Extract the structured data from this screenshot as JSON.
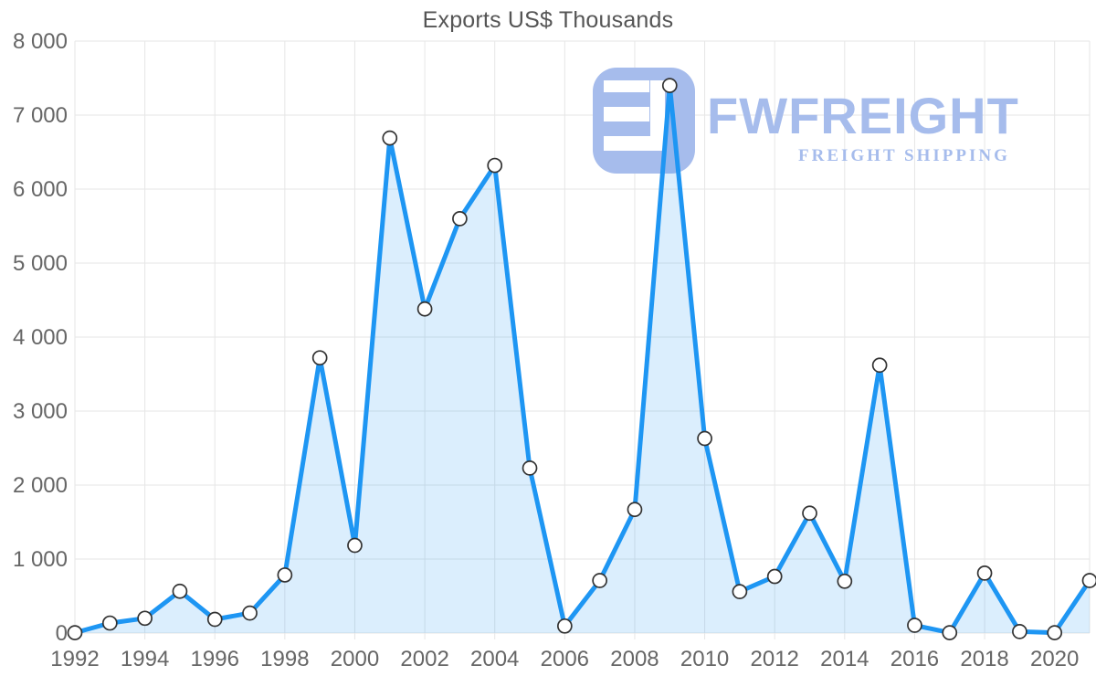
{
  "title": "Exports US$ Thousands",
  "watermark": {
    "brand": "FWFREIGHT",
    "tagline": "FREIGHT SHIPPING",
    "color": "#a6bcec"
  },
  "chart_data": {
    "type": "area",
    "title": "Exports US$ Thousands",
    "xlabel": "",
    "ylabel": "",
    "x": [
      1992,
      1993,
      1994,
      1995,
      1996,
      1997,
      1998,
      1999,
      2000,
      2001,
      2002,
      2003,
      2004,
      2005,
      2006,
      2007,
      2008,
      2009,
      2010,
      2011,
      2012,
      2013,
      2014,
      2015,
      2016,
      2017,
      2018,
      2019,
      2020,
      2021
    ],
    "values": [
      5,
      135,
      200,
      565,
      185,
      270,
      785,
      3720,
      1185,
      6690,
      4380,
      5600,
      6320,
      2230,
      95,
      710,
      1670,
      7400,
      2630,
      560,
      765,
      1620,
      700,
      3620,
      105,
      5,
      810,
      20,
      5,
      710
    ],
    "ylim": [
      0,
      8000
    ],
    "y_ticks": [
      0,
      1000,
      2000,
      3000,
      4000,
      5000,
      6000,
      7000,
      8000
    ],
    "y_tick_labels": [
      "0",
      "1 000",
      "2 000",
      "3 000",
      "4 000",
      "5 000",
      "6 000",
      "7 000",
      "8 000"
    ],
    "x_tick_labels": [
      "1992",
      "1994",
      "1996",
      "1998",
      "2000",
      "2002",
      "2004",
      "2006",
      "2008",
      "2010",
      "2012",
      "2014",
      "2016",
      "2018",
      "2020"
    ],
    "grid": true,
    "legend": "none",
    "line_color": "#1e96f3",
    "fill_color": "rgba(33,150,243,0.16)",
    "marker_fill": "#ffffff",
    "marker_stroke": "#333333",
    "grid_color": "#e6e6e6",
    "axis_label_color": "#666666",
    "title_color": "#555555"
  }
}
